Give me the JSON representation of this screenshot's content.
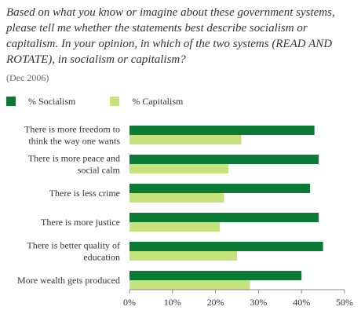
{
  "header": {
    "title": "Based on what you know or imagine about these government systems, please tell me whether the statements best describe socialism or capitalism. In your opinion, in which of the two systems (READ AND ROTATE), in socialism or capitalism?",
    "date_note": "(Dec 2006)"
  },
  "colors": {
    "socialism": "#0a7a35",
    "capitalism": "#c6e27a"
  },
  "chart_data": {
    "type": "bar",
    "orientation": "horizontal",
    "categories": [
      [
        "There is more freedom to",
        "think the way one wants"
      ],
      [
        "There is more peace and",
        "social calm"
      ],
      [
        "There is less crime"
      ],
      [
        "There is more justice"
      ],
      [
        "There is better quality of",
        "education"
      ],
      [
        "More wealth gets produced"
      ]
    ],
    "series": [
      {
        "name": "% Socialism",
        "color": "#0a7a35",
        "values": [
          43,
          44,
          42,
          44,
          45,
          40
        ]
      },
      {
        "name": "% Capitalism",
        "color": "#c6e27a",
        "values": [
          26,
          23,
          22,
          21,
          25,
          28
        ]
      }
    ],
    "x_ticks": [
      "0%",
      "10%",
      "20%",
      "30%",
      "40%",
      "50%"
    ],
    "xlim": [
      0,
      50
    ],
    "grid": false,
    "legend_position": "top-left"
  }
}
